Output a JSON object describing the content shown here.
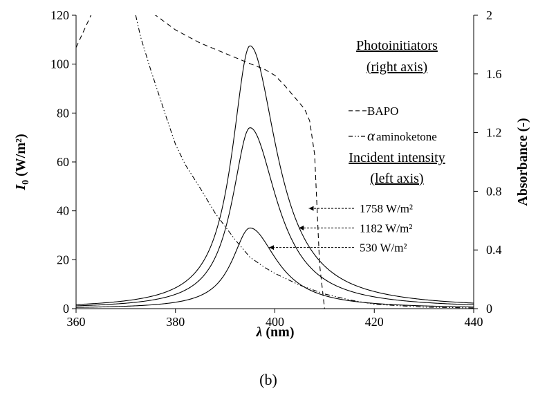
{
  "chart_data": {
    "type": "line",
    "caption": "(b)",
    "xlabel_symbol": "λ",
    "xlabel_unit": " (nm)",
    "ylabel_symbol": "I",
    "ylabel_sub": "0",
    "ylabel_unit": " (W/m²)",
    "y2label": "Absorbance (-)",
    "xlim": [
      360,
      440
    ],
    "ylim": [
      0,
      120
    ],
    "y2lim": [
      0,
      2
    ],
    "x_ticks": [
      "360",
      "380",
      "400",
      "420",
      "440"
    ],
    "y_ticks": [
      "0",
      "20",
      "40",
      "60",
      "80",
      "100",
      "120"
    ],
    "y2_ticks": [
      "0",
      "0.4",
      "0.8",
      "1.2",
      "1.6",
      "2"
    ],
    "grid": false,
    "legend_photo": {
      "title_line1": "Photoinitiators",
      "title_line2": "(right axis)",
      "items": [
        "BAPO",
        "aminoketone"
      ],
      "alpha_symbol": "α"
    },
    "legend_intensity": {
      "title_line1": "Incident intensity",
      "title_line2": "(left axis)"
    },
    "intensity_series": [
      {
        "name": "1758 W/m²",
        "peak_x": 395,
        "peak_y": 107.5,
        "sigma_left": 4.4,
        "sigma_right": 6.6,
        "label_x": 406,
        "label_y": 41
      },
      {
        "name": "1182 W/m²",
        "peak_x": 395,
        "peak_y": 74,
        "sigma_left": 4.4,
        "sigma_right": 6.6,
        "label_x": 404,
        "label_y": 33
      },
      {
        "name": "530 W/m²",
        "peak_x": 395,
        "peak_y": 33,
        "sigma_left": 4.4,
        "sigma_right": 6.6,
        "label_x": 398,
        "label_y": 25
      }
    ],
    "absorbance_series": [
      {
        "name": "BAPO",
        "axis": "right",
        "dash": "dashed",
        "x": [
          360,
          363,
          365,
          376,
          378,
          380,
          385,
          390,
          395,
          398,
          400,
          402,
          404,
          406,
          407,
          408,
          409,
          410,
          440
        ],
        "y": [
          1.78,
          2.0,
          2.15,
          2.0,
          1.95,
          1.9,
          1.81,
          1.74,
          1.67,
          1.63,
          1.59,
          1.52,
          1.44,
          1.36,
          1.28,
          1.05,
          0.3,
          0.0,
          0.0
        ]
      },
      {
        "name": "α aminoketone",
        "axis": "right",
        "dash": "dashdotdot",
        "x": [
          372,
          373,
          375,
          378,
          380,
          382,
          385,
          388,
          390,
          392,
          395,
          398,
          400,
          405,
          410,
          415,
          420,
          430,
          440
        ],
        "y": [
          2.0,
          1.85,
          1.63,
          1.32,
          1.12,
          0.98,
          0.82,
          0.65,
          0.56,
          0.47,
          0.35,
          0.28,
          0.24,
          0.16,
          0.1,
          0.06,
          0.03,
          0.01,
          0.005
        ]
      }
    ]
  }
}
